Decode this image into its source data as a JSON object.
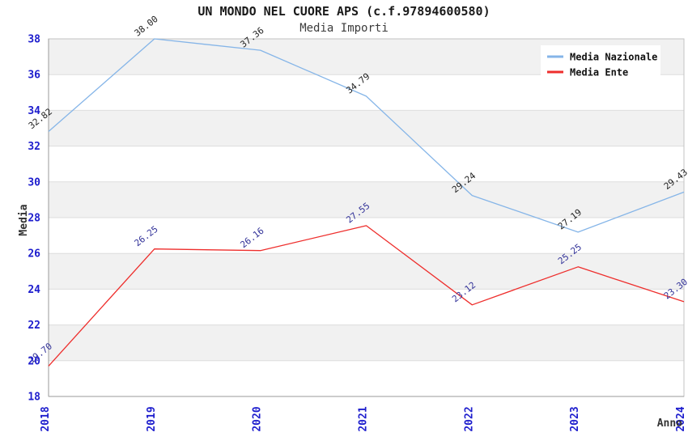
{
  "header": {
    "title": "UN MONDO NEL CUORE APS (c.f.97894600580)",
    "subtitle": "Media Importi"
  },
  "chart_data": {
    "type": "line",
    "title": "UN MONDO NEL CUORE APS (c.f.97894600580)",
    "subtitle": "Media Importi",
    "xlabel": "Anno",
    "ylabel": "Media",
    "x": [
      2018,
      2019,
      2020,
      2021,
      2022,
      2023,
      2024
    ],
    "series": [
      {
        "name": "Media Nazionale",
        "color": "#85b5e8",
        "label_color": "#222222",
        "values": [
          32.82,
          38.0,
          37.36,
          34.79,
          29.24,
          27.19,
          29.43
        ]
      },
      {
        "name": "Media Ente",
        "color": "#ee2e2c",
        "label_color": "#333399",
        "values": [
          19.7,
          26.25,
          26.16,
          27.55,
          23.12,
          25.25,
          23.3
        ]
      }
    ],
    "ylim": [
      18,
      38
    ],
    "ytick_step": 2,
    "yticks": [
      18,
      20,
      22,
      24,
      26,
      28,
      30,
      32,
      34,
      36,
      38
    ],
    "grid": "horizontal-bands",
    "legend_position": "top-right",
    "colors": {
      "tick_label": "#1d1dcd",
      "band_fill": "#f1f1f1",
      "gridline": "#dddddd",
      "plot_border": "#c3c3c3",
      "axis_line": "#9a9a9a",
      "legend_bg": "#ffffff"
    }
  }
}
